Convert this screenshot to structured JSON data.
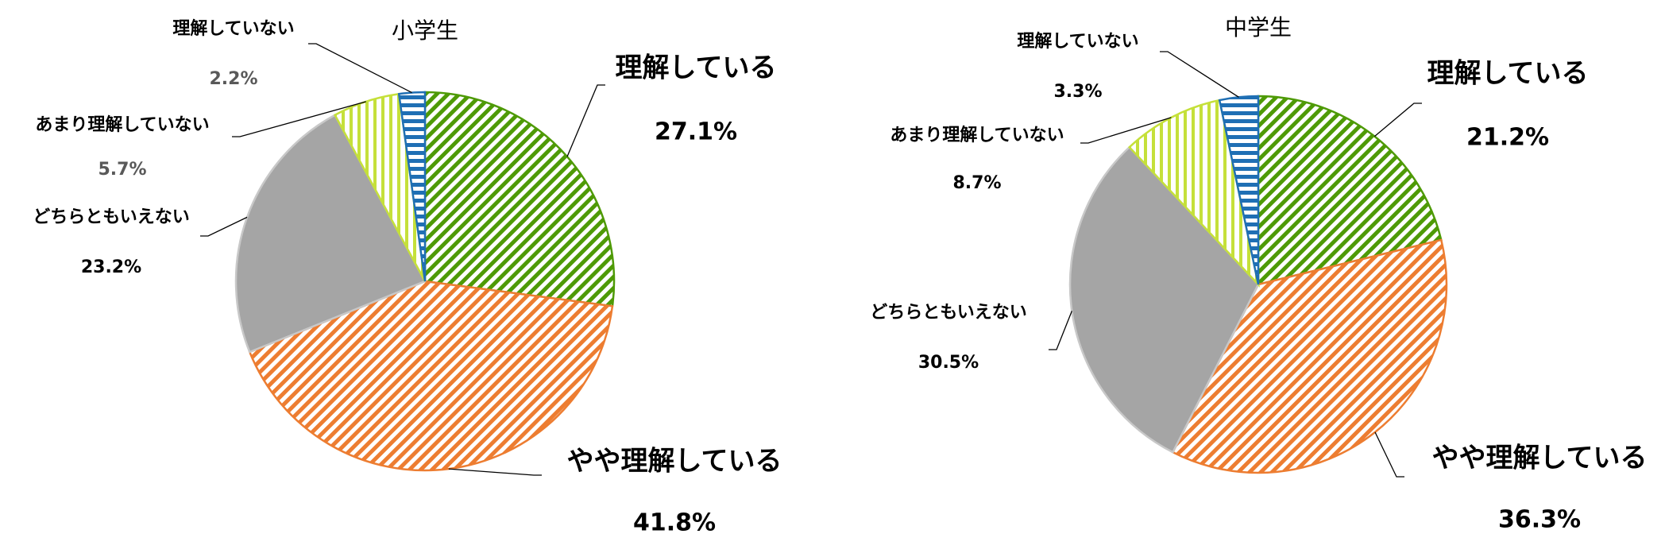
{
  "chart_data": [
    {
      "type": "pie",
      "title": "小学生",
      "categories": [
        "理解している",
        "やや理解している",
        "どちらともいえない",
        "あまり理解していない",
        "理解していない"
      ],
      "values": [
        27.1,
        41.8,
        23.2,
        5.7,
        2.2
      ],
      "value_labels": [
        "27.1%",
        "41.8%",
        "23.2%",
        "5.7%",
        "2.2%"
      ],
      "colors": [
        "#4e9a06",
        "#ed7d31",
        "#a5a5a5",
        "#c5e03a",
        "#1f6fb4"
      ],
      "patterns": [
        "diagonal",
        "diagonal",
        "solid",
        "vertical",
        "horizontal"
      ]
    },
    {
      "type": "pie",
      "title": "中学生",
      "categories": [
        "理解している",
        "やや理解している",
        "どちらともいえない",
        "あまり理解していない",
        "理解していない"
      ],
      "values": [
        21.2,
        36.3,
        30.5,
        8.7,
        3.3
      ],
      "value_labels": [
        "21.2%",
        "36.3%",
        "30.5%",
        "8.7%",
        "3.3%"
      ],
      "colors": [
        "#4e9a06",
        "#ed7d31",
        "#a5a5a5",
        "#c5e03a",
        "#1f6fb4"
      ],
      "patterns": [
        "diagonal",
        "diagonal",
        "solid",
        "vertical",
        "horizontal"
      ]
    }
  ]
}
